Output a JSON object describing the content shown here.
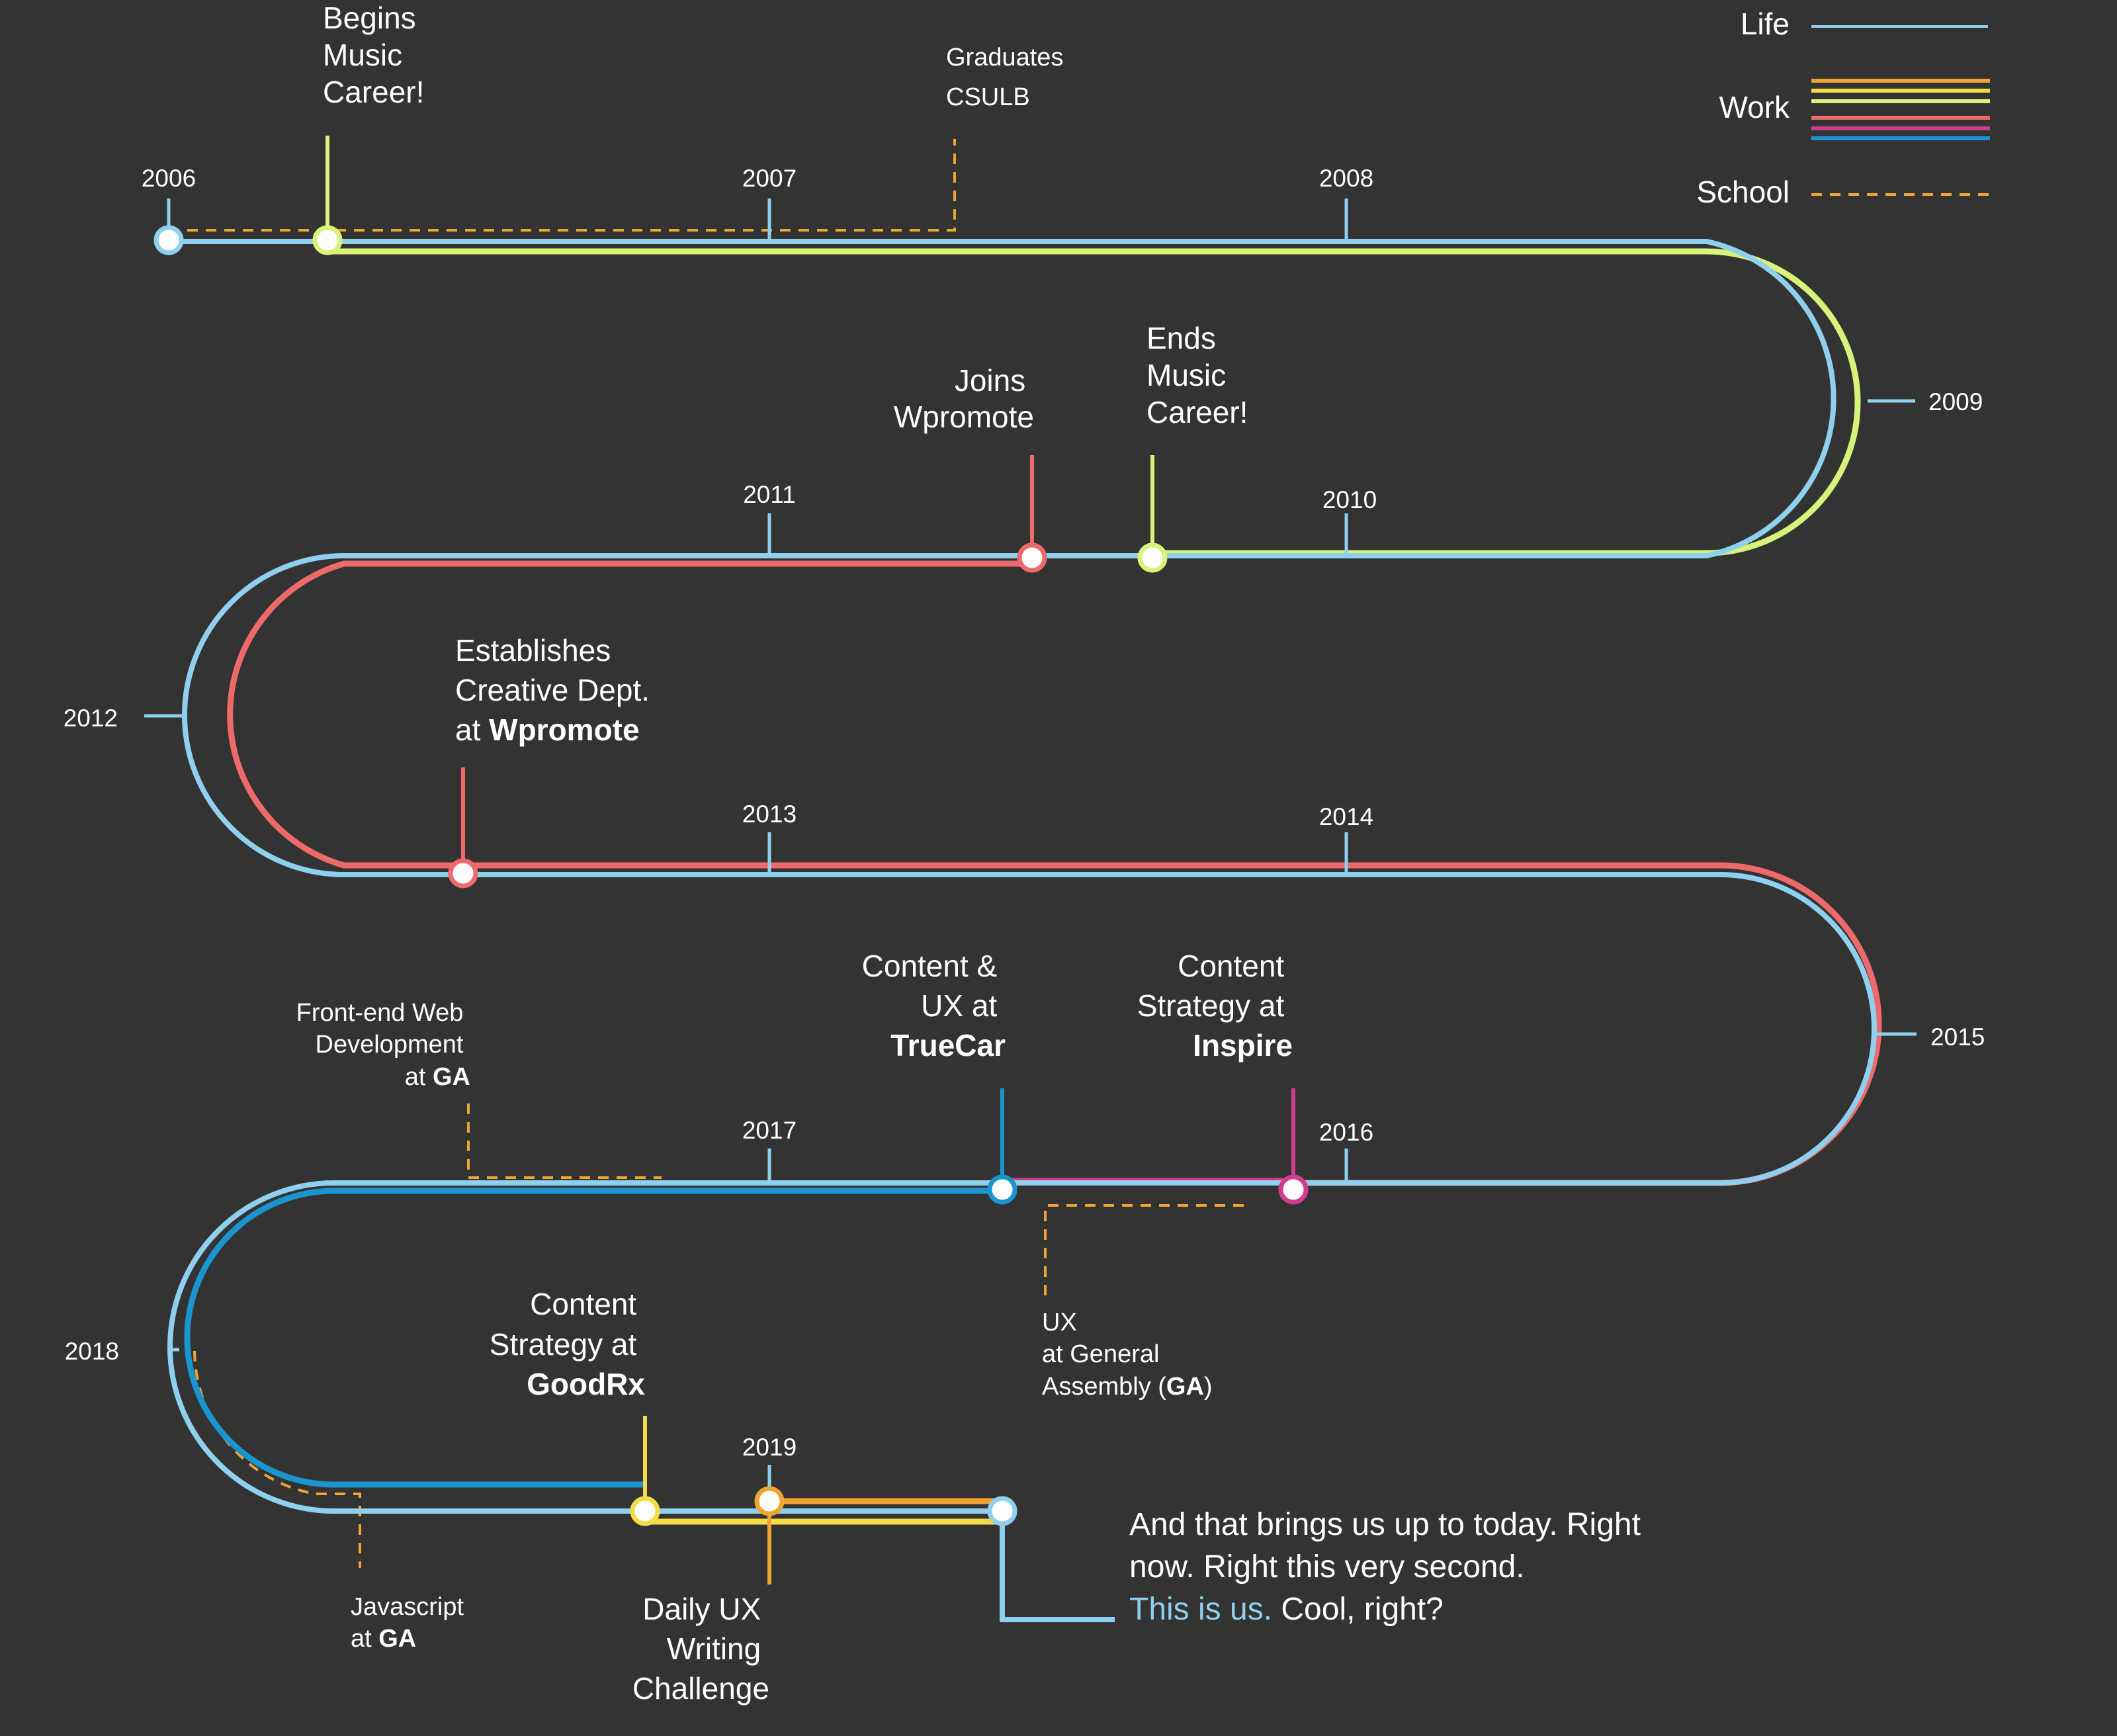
{
  "colors": {
    "background": "#333333",
    "life": "#8fd0ef",
    "school": "#f0a533",
    "music": "#d8f27a",
    "wpromote": "#ee6a6a",
    "truecar": "#1a95d0",
    "inspire": "#d13c8d",
    "goodrx": "#f3dc45",
    "dailyux": "#f0a533"
  },
  "legend": {
    "life_label": "Life",
    "work_label": "Work",
    "school_label": "School",
    "work_colors": [
      "#f0a533",
      "#f3dc45",
      "#d8f27a",
      "#ee6a6a",
      "#d13c8d",
      "#1a95d0"
    ]
  },
  "years": {
    "y2006": "2006",
    "y2007": "2007",
    "y2008": "2008",
    "y2009": "2009",
    "y2010": "2010",
    "y2011": "2011",
    "y2012": "2012",
    "y2013": "2013",
    "y2014": "2014",
    "y2015": "2015",
    "y2016": "2016",
    "y2017": "2017",
    "y2018": "2018",
    "y2019": "2019"
  },
  "events": {
    "music_start": {
      "l1": "Begins",
      "l2": "Music",
      "l3": "Career!"
    },
    "graduates": {
      "l1": "Graduates",
      "l2": "CSULB"
    },
    "wpromote_join": {
      "l1": "Joins",
      "l2": "Wpromote"
    },
    "music_end": {
      "l1": "Ends",
      "l2": "Music",
      "l3": "Career!"
    },
    "creative_dept": {
      "l1": "Establishes",
      "l2": "Creative Dept.",
      "l3_prefix": "at ",
      "l3_bold": "Wpromote"
    },
    "frontend": {
      "l1": "Front-end Web",
      "l2": "Development",
      "l3_prefix": "at ",
      "l3_bold": "GA"
    },
    "truecar": {
      "l1": "Content &",
      "l2": "UX at",
      "l3_bold": "TrueCar"
    },
    "inspire": {
      "l1": "Content",
      "l2": "Strategy at",
      "l3_bold": "Inspire"
    },
    "ux_ga": {
      "l1": "UX",
      "l2": "at General",
      "l3_prefix": "Assembly (",
      "l3_bold": "GA",
      "l3_suffix": ")"
    },
    "goodrx": {
      "l1": "Content",
      "l2": "Strategy at",
      "l3_bold": "GoodRx"
    },
    "javascript": {
      "l1": "Javascript",
      "l2_prefix": "at ",
      "l2_bold": "GA"
    },
    "daily_ux": {
      "l1": "Daily UX",
      "l2": "Writing",
      "l3": "Challenge"
    }
  },
  "outro": {
    "l1": "And that brings us up to today. Right",
    "l2": "now. Right this very second.",
    "l3_highlight": "This is us.",
    "l3_rest": " Cool, right?"
  }
}
